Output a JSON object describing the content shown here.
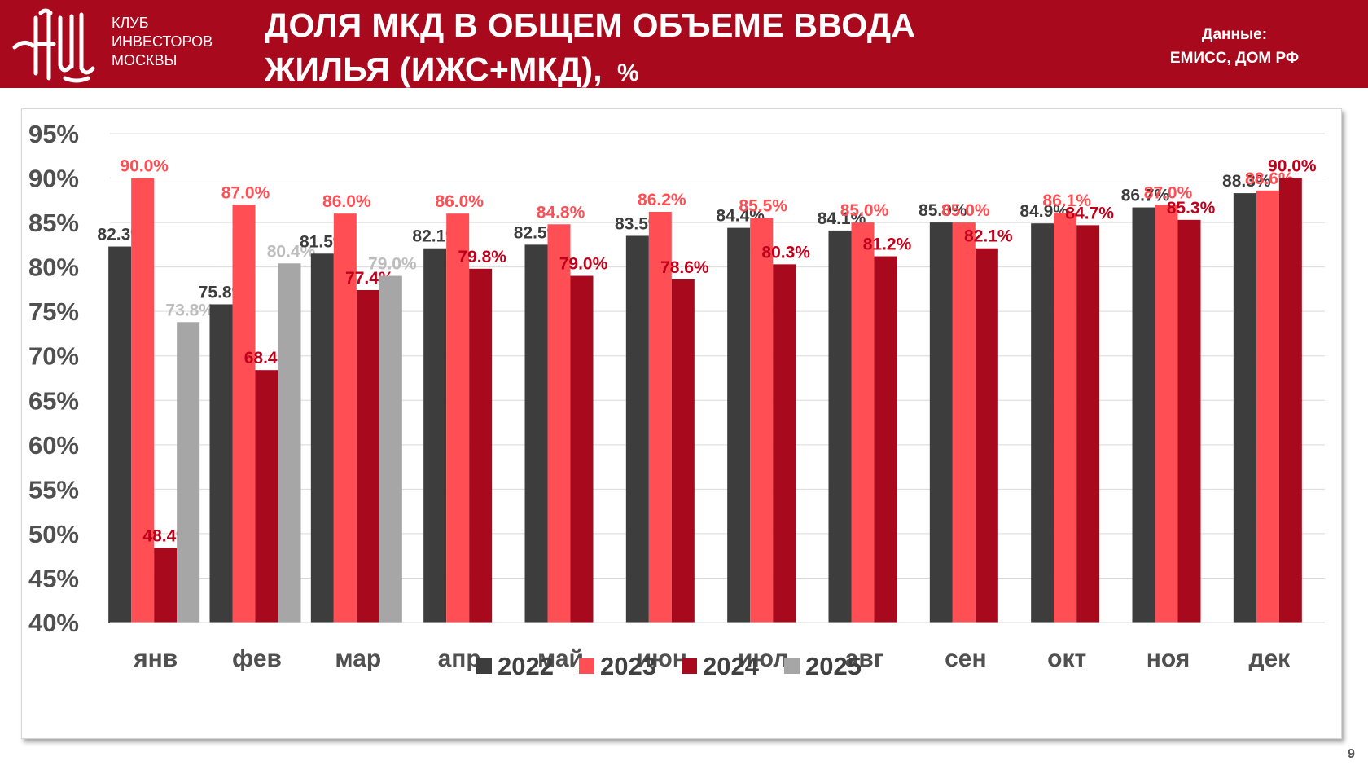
{
  "header": {
    "org_lines": [
      "КЛУБ",
      "ИНВЕСТОРОВ",
      "МОСКВЫ"
    ],
    "title_line1": "ДОЛЯ МКД В ОБЩЕМ ОБЪЕМЕ ВВОДА",
    "title_line2": "ЖИЛЬЯ (ИЖС+МКД),",
    "title_unit": "%",
    "source_label": "Данные:",
    "source_value": "ЕМИСС, ДОМ РФ"
  },
  "page_number": "9",
  "colors": {
    "brand": "#a8091c",
    "series_2022": "#3d3d3d",
    "series_2023": "#ff4f55",
    "series_2024": "#a8091c",
    "series_2025": "#a6a6a6"
  },
  "chart_data": {
    "type": "bar",
    "title": "",
    "xlabel": "",
    "ylabel": "",
    "ylim": [
      40,
      95
    ],
    "yticks": [
      "95%",
      "90%",
      "85%",
      "80%",
      "75%",
      "70%",
      "65%",
      "60%",
      "55%",
      "50%",
      "45%",
      "40%"
    ],
    "grid": true,
    "legend_position": "bottom",
    "categories": [
      "янв",
      "фев",
      "мар",
      "апр",
      "май",
      "июн",
      "июл",
      "авг",
      "сен",
      "окт",
      "ноя",
      "дек"
    ],
    "series": [
      {
        "name": "2022",
        "color": "#3d3d3d",
        "label_color": "#3d3d3d",
        "values": [
          82.3,
          75.8,
          81.5,
          82.1,
          82.5,
          83.5,
          84.4,
          84.1,
          85.0,
          84.9,
          86.7,
          88.3
        ]
      },
      {
        "name": "2023",
        "color": "#ff4f55",
        "label_color": "#ff4f55",
        "values": [
          90.0,
          87.0,
          86.0,
          86.0,
          84.8,
          86.2,
          85.5,
          85.0,
          85.0,
          86.1,
          87.0,
          88.6
        ]
      },
      {
        "name": "2024",
        "color": "#a8091c",
        "label_color": "#c0001a",
        "values": [
          48.4,
          68.4,
          77.4,
          79.8,
          79.0,
          78.6,
          80.3,
          81.2,
          82.1,
          84.7,
          85.3,
          90.0
        ]
      },
      {
        "name": "2025",
        "color": "#a6a6a6",
        "label_color": "#bdbdbd",
        "values": [
          73.8,
          80.4,
          79.0,
          null,
          null,
          null,
          null,
          null,
          null,
          null,
          null,
          null
        ]
      }
    ]
  }
}
